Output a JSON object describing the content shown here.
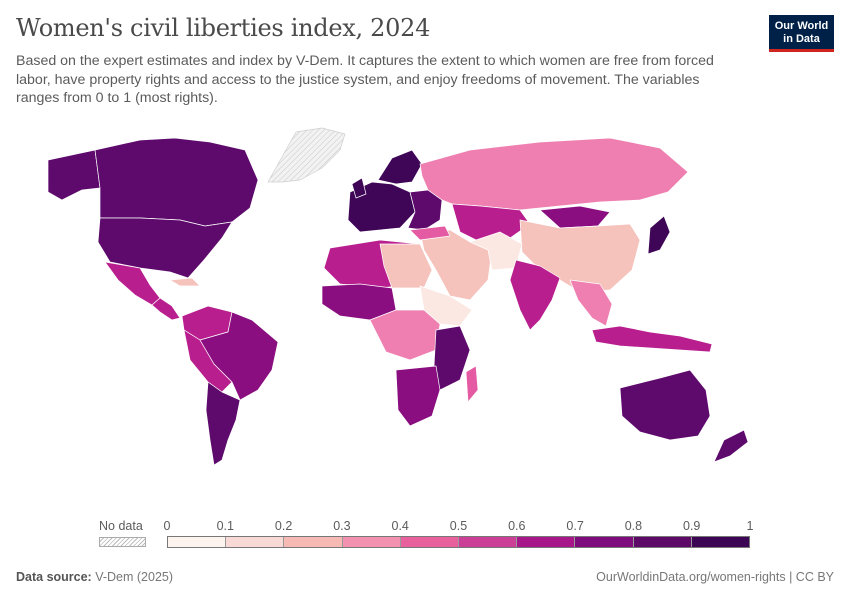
{
  "header": {
    "title": "Women's civil liberties index, 2024",
    "subtitle": "Based on the expert estimates and index by V-Dem. It captures the extent to which women are free from forced labor, have property rights and access to the justice system, and enjoy freedoms of movement. The variables ranges from 0 to 1 (most rights)."
  },
  "logo": {
    "line1": "Our World",
    "line2": "in Data"
  },
  "legend": {
    "no_data_label": "No data",
    "ticks": [
      "0",
      "0.1",
      "0.2",
      "0.3",
      "0.4",
      "0.5",
      "0.6",
      "0.7",
      "0.8",
      "0.9",
      "1"
    ],
    "bin_colors": [
      "#fdf3ef",
      "#f9d9d6",
      "#f6b9b3",
      "#f291b0",
      "#e8619c",
      "#cc3f96",
      "#a8178a",
      "#7e0c7c",
      "#5c0968",
      "#3d0654"
    ]
  },
  "colors": {
    "no_data": "#e8e8e8",
    "border": "#ffffff",
    "c_lightest": "#fbe8e3",
    "c_light": "#f6c2bc",
    "c_mid": "#ef7fb0",
    "c_pink": "#e45aa3",
    "c_magenta": "#b91e8e",
    "c_purple": "#8a0e80",
    "c_deep": "#5e0a6d",
    "c_darkest": "#3f0657"
  },
  "footer": {
    "source_label": "Data source:",
    "source_value": "V-Dem (2025)",
    "credit": "OurWorldinData.org/women-rights | CC BY"
  }
}
